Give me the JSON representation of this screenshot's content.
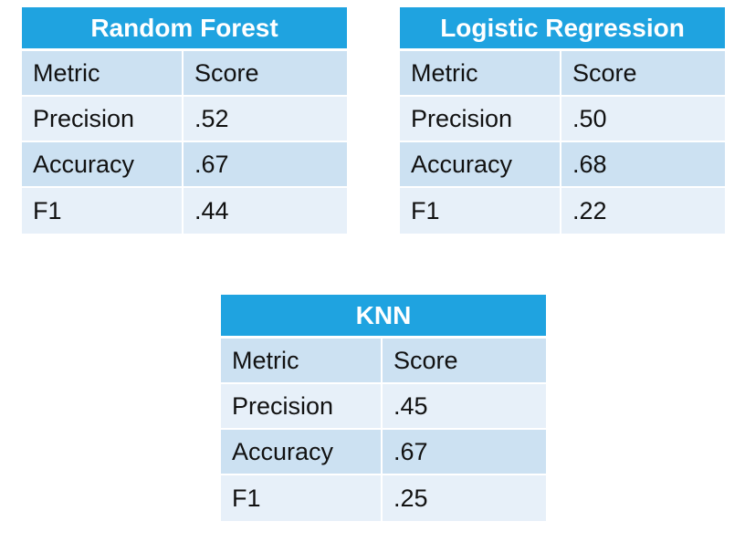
{
  "tables": {
    "random_forest": {
      "title": "Random Forest",
      "header": {
        "metric": "Metric",
        "score": "Score"
      },
      "rows": [
        {
          "metric": "Precision",
          "score": ".52"
        },
        {
          "metric": "Accuracy",
          "score": ".67"
        },
        {
          "metric": "F1",
          "score": ".44"
        }
      ]
    },
    "logistic_regression": {
      "title": "Logistic Regression",
      "header": {
        "metric": "Metric",
        "score": "Score"
      },
      "rows": [
        {
          "metric": "Precision",
          "score": ".50"
        },
        {
          "metric": "Accuracy",
          "score": ".68"
        },
        {
          "metric": "F1",
          "score": ".22"
        }
      ]
    },
    "knn": {
      "title": "KNN",
      "header": {
        "metric": "Metric",
        "score": "Score"
      },
      "rows": [
        {
          "metric": "Precision",
          "score": ".45"
        },
        {
          "metric": "Accuracy",
          "score": ".67"
        },
        {
          "metric": "F1",
          "score": ".25"
        }
      ]
    }
  },
  "colors": {
    "title_bg": "#1fa3e0",
    "row_dark": "#cce1f2",
    "row_light": "#e7f0f9"
  }
}
